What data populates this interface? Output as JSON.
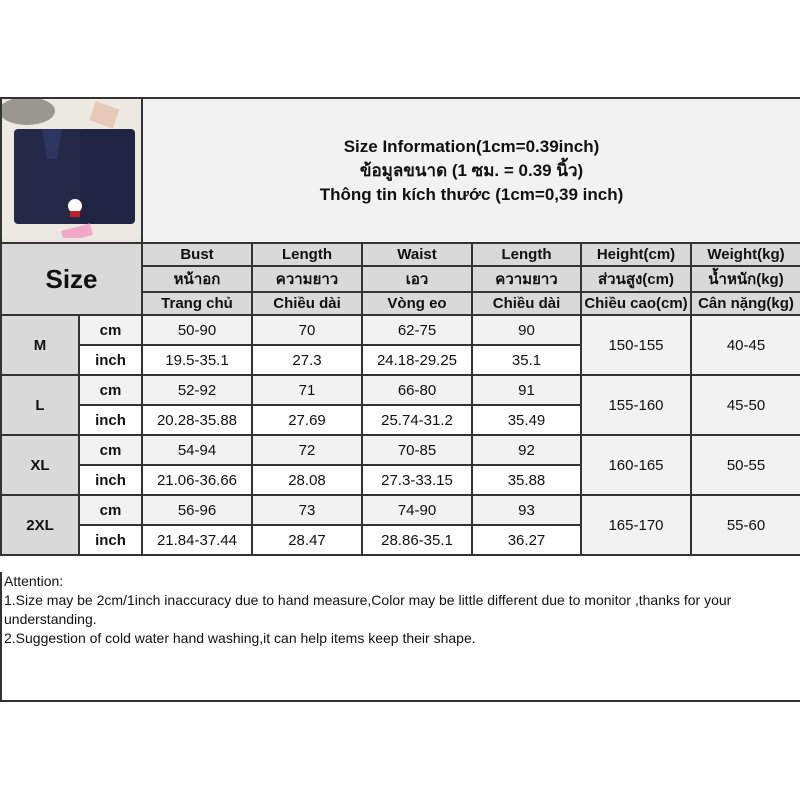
{
  "title_lines": [
    "Size Information(1cm=0.39inch)",
    "ข้อมูลขนาด (1 ซม. = 0.39 นิ้ว)",
    "Thông tin kích thước (1cm=0,39 inch)"
  ],
  "size_label": "Size",
  "columns": [
    {
      "en": "Bust",
      "th": "หน้าอก",
      "vi": "Trang chủ"
    },
    {
      "en": "Length",
      "th": "ความยาว",
      "vi": "Chiều dài"
    },
    {
      "en": "Waist",
      "th": "เอว",
      "vi": "Vòng eo"
    },
    {
      "en": "Length",
      "th": "ความยาว",
      "vi": "Chiều dài"
    },
    {
      "en": "Height(cm)",
      "th": "ส่วนสูง(cm)",
      "vi": "Chiều cao(cm)"
    },
    {
      "en": "Weight(kg)",
      "th": "น้ำหนัก(kg)",
      "vi": "Cân nặng(kg)"
    }
  ],
  "units": {
    "cm": "cm",
    "inch": "inch"
  },
  "rows": [
    {
      "size": "M",
      "cm": [
        "50-90",
        "70",
        "62-75",
        "90"
      ],
      "inch": [
        "19.5-35.1",
        "27.3",
        "24.18-29.25",
        "35.1"
      ],
      "height": "150-155",
      "weight": "40-45"
    },
    {
      "size": "L",
      "cm": [
        "52-92",
        "71",
        "66-80",
        "91"
      ],
      "inch": [
        "20.28-35.88",
        "27.69",
        "25.74-31.2",
        "35.49"
      ],
      "height": "155-160",
      "weight": "45-50"
    },
    {
      "size": "XL",
      "cm": [
        "54-94",
        "72",
        "70-85",
        "92"
      ],
      "inch": [
        "21.06-36.66",
        "28.08",
        "27.3-33.15",
        "35.88"
      ],
      "height": "160-165",
      "weight": "50-55"
    },
    {
      "size": "2XL",
      "cm": [
        "56-96",
        "73",
        "74-90",
        "93"
      ],
      "inch": [
        "21.84-37.44",
        "28.47",
        "28.86-35.1",
        "36.27"
      ],
      "height": "165-170",
      "weight": "55-60"
    }
  ],
  "attention": {
    "heading": "Attention:",
    "notes": [
      "1.Size may be 2cm/1inch inaccuracy due to hand measure,Color may be little different due to monitor ,thanks for your understanding.",
      "2.Suggestion of cold water hand washing,it can help items keep their shape."
    ]
  }
}
